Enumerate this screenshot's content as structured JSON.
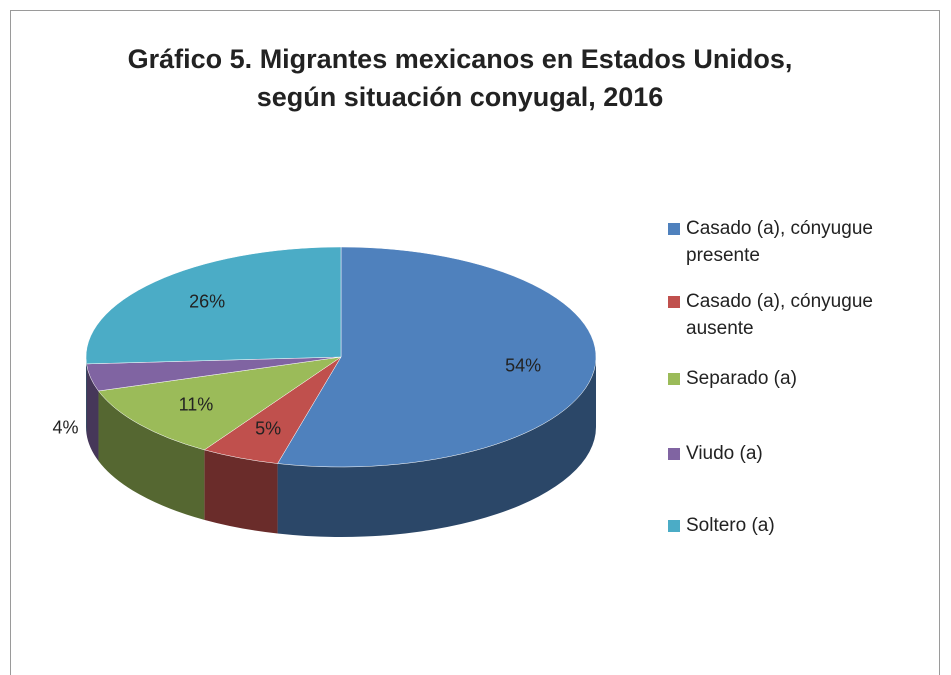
{
  "chart_data": {
    "type": "pie",
    "title": "Gráfico 5. Migrantes mexicanos en Estados Unidos, según situación conyugal, 2016",
    "categories": [
      "Casado (a), cónyugue presente",
      "Casado (a), cónyugue ausente",
      "Separado (a)",
      "Viudo (a)",
      "Soltero (a)"
    ],
    "values": [
      54,
      5,
      11,
      4,
      26
    ],
    "value_labels": [
      "54%",
      "5%",
      "11%",
      "4%",
      "26%"
    ],
    "colors": [
      "#4f81bd",
      "#c0504d",
      "#9bbb59",
      "#8064a2",
      "#4bacc6"
    ],
    "legend": "right"
  }
}
